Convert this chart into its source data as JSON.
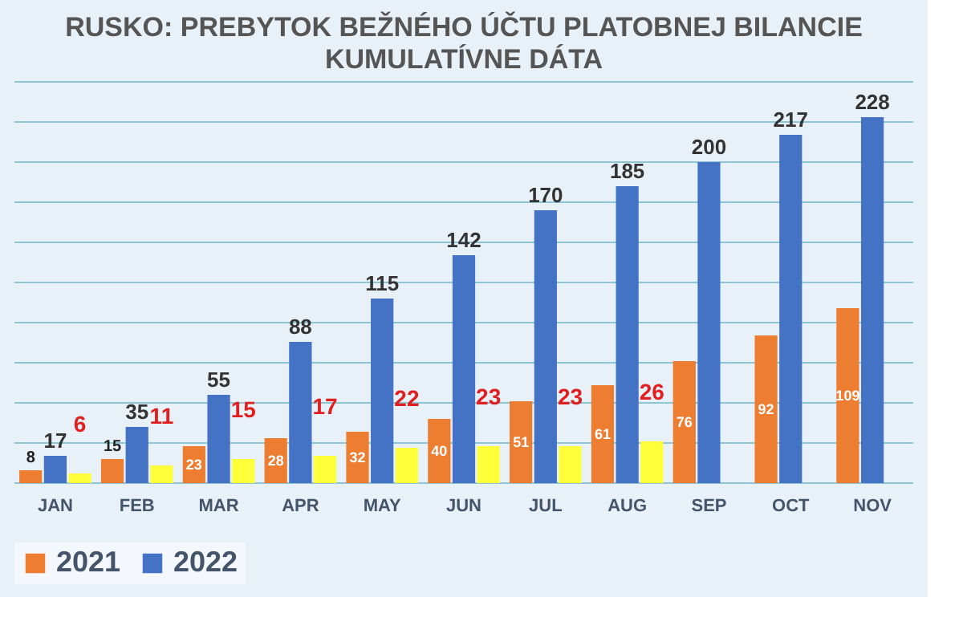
{
  "chart_data": {
    "type": "bar",
    "title": "RUSKO: PREBYTOK BEŽNÉHO ÚČTU PLATOBNEJ BILANCIE",
    "subtitle": "KUMULATÍVNE DÁTA",
    "categories": [
      "JAN",
      "FEB",
      "MAR",
      "APR",
      "MAY",
      "JUN",
      "JUL",
      "AUG",
      "SEP",
      "OCT",
      "NOV"
    ],
    "series": [
      {
        "name": "2021",
        "color": "#ed7d31",
        "values": [
          8,
          15,
          23,
          28,
          32,
          40,
          51,
          61,
          76,
          92,
          109
        ]
      },
      {
        "name": "2022",
        "color": "#4472c4",
        "values": [
          17,
          35,
          55,
          88,
          115,
          142,
          170,
          185,
          200,
          217,
          228
        ]
      },
      {
        "color": "#ffff3a",
        "values": [
          6,
          11,
          15,
          17,
          22,
          23,
          23,
          26,
          null,
          null,
          null
        ]
      }
    ],
    "ylim": [
      0,
      250
    ],
    "yticks": [
      0,
      25,
      50,
      75,
      100,
      125,
      150,
      175,
      200,
      225,
      250
    ],
    "grid": "y",
    "tick_labels": "x",
    "legend": "bottom",
    "data_labels": true
  }
}
